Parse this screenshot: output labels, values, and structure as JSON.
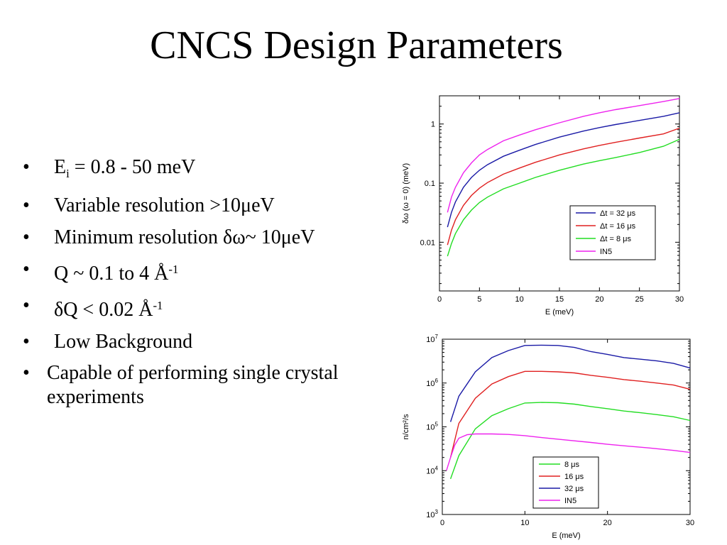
{
  "slide": {
    "title": "CNCS Design Parameters",
    "bullets": [
      {
        "pre": "E",
        "sub": "i",
        "post": " = 0.8 - 50 meV"
      },
      {
        "pre": "Variable resolution >10μeV"
      },
      {
        "pre": "Minimum resolution δω~ 10μeV"
      },
      {
        "pre": "Q ~ 0.1 to 4 Å",
        "sup": "-1"
      },
      {
        "pre": "δQ < 0.02 Å",
        "sup": "-1"
      },
      {
        "pre": "Low Background"
      },
      {
        "pre": "Capable of performing single crystal experiments"
      }
    ],
    "bullet_symbol": "•"
  },
  "chart_data": [
    {
      "type": "line",
      "xlabel": "E (meV)",
      "ylabel": "δω (ω = 0) (meV)",
      "xscale": "linear",
      "yscale": "log",
      "xlim": [
        0,
        30
      ],
      "ylim": [
        0.0015,
        3
      ],
      "xticks": [
        0,
        5,
        10,
        15,
        20,
        25,
        30
      ],
      "yticks": [
        {
          "value": 0.01,
          "label": "0.01"
        },
        {
          "value": 0.1,
          "label": "0.1"
        },
        {
          "value": 1,
          "label": "1"
        }
      ],
      "legend_position": "lower-right",
      "x": [
        1,
        1.5,
        2,
        3,
        4,
        5,
        6,
        8,
        10,
        12,
        15,
        18,
        20,
        22,
        25,
        28,
        30
      ],
      "series": [
        {
          "name": "Δt = 32 μs",
          "color": "#1a1aa6",
          "values": [
            0.018,
            0.032,
            0.048,
            0.085,
            0.125,
            0.165,
            0.205,
            0.285,
            0.36,
            0.45,
            0.6,
            0.76,
            0.87,
            0.98,
            1.15,
            1.35,
            1.55
          ]
        },
        {
          "name": "Δt = 16 μs",
          "color": "#e02020",
          "values": [
            0.009,
            0.016,
            0.024,
            0.042,
            0.062,
            0.082,
            0.102,
            0.142,
            0.18,
            0.225,
            0.3,
            0.38,
            0.435,
            0.49,
            0.58,
            0.68,
            0.85
          ]
        },
        {
          "name": "Δt = 8 μs",
          "color": "#22dd22",
          "values": [
            0.0058,
            0.0095,
            0.014,
            0.024,
            0.035,
            0.047,
            0.058,
            0.08,
            0.1,
            0.125,
            0.165,
            0.21,
            0.24,
            0.27,
            0.33,
            0.42,
            0.55
          ]
        },
        {
          "name": "IN5",
          "color": "#ee22ee",
          "values": [
            0.032,
            0.058,
            0.085,
            0.15,
            0.22,
            0.3,
            0.37,
            0.52,
            0.65,
            0.8,
            1.05,
            1.35,
            1.55,
            1.75,
            2.05,
            2.4,
            2.7
          ]
        }
      ]
    },
    {
      "type": "line",
      "xlabel": "E (meV)",
      "ylabel": "n/cm²/s",
      "xscale": "linear",
      "yscale": "log",
      "xlim": [
        0,
        30
      ],
      "ylim": [
        1000,
        10000000
      ],
      "xticks": [
        0,
        10,
        20,
        30
      ],
      "yticks": [
        {
          "value": 1000,
          "base": "10",
          "exp": "3"
        },
        {
          "value": 10000,
          "base": "10",
          "exp": "4"
        },
        {
          "value": 100000,
          "base": "10",
          "exp": "5"
        },
        {
          "value": 1000000,
          "base": "10",
          "exp": "6"
        },
        {
          "value": 10000000,
          "base": "10",
          "exp": "7"
        }
      ],
      "legend_position": "bottom-center",
      "series": [
        {
          "name": "8 μs",
          "color": "#22dd22",
          "x": [
            1,
            2,
            4,
            6,
            8,
            10,
            12,
            14,
            16,
            18,
            20,
            22,
            24,
            26,
            28,
            30
          ],
          "values": [
            6500,
            22000,
            90000,
            180000,
            260000,
            350000,
            360000,
            355000,
            330000,
            290000,
            260000,
            230000,
            210000,
            190000,
            170000,
            140000
          ]
        },
        {
          "name": "16 μs",
          "color": "#e02020",
          "x": [
            1,
            2,
            4,
            6,
            8,
            10,
            12,
            14,
            16,
            18,
            20,
            22,
            24,
            26,
            28,
            30
          ],
          "values": [
            20000,
            120000,
            450000,
            950000,
            1400000,
            1850000,
            1850000,
            1800000,
            1700000,
            1500000,
            1350000,
            1200000,
            1100000,
            1000000,
            900000,
            720000
          ]
        },
        {
          "name": "32 μs",
          "color": "#1a1aa6",
          "x": [
            1,
            2,
            4,
            6,
            8,
            10,
            12,
            14,
            16,
            18,
            20,
            22,
            24,
            26,
            28,
            30
          ],
          "values": [
            130000,
            500000,
            1800000,
            3800000,
            5500000,
            7200000,
            7300000,
            7200000,
            6500000,
            5200000,
            4500000,
            3800000,
            3500000,
            3200000,
            2800000,
            2200000
          ]
        },
        {
          "name": "IN5",
          "color": "#ee22ee",
          "x": [
            0.5,
            1,
            1.5,
            2,
            3,
            4,
            6,
            8,
            10,
            12,
            15,
            18,
            20,
            22,
            25,
            28,
            30
          ],
          "values": [
            10000,
            20000,
            38000,
            55000,
            66000,
            69000,
            69000,
            67000,
            63000,
            57000,
            50000,
            44000,
            40000,
            37000,
            33000,
            29000,
            26000
          ]
        }
      ]
    }
  ]
}
